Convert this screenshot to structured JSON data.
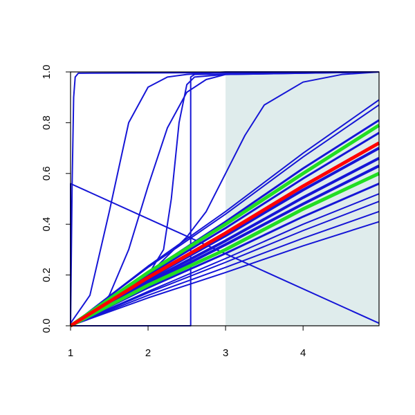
{
  "chart_data": {
    "type": "line",
    "xlim": [
      1,
      4.98
    ],
    "ylim": [
      0,
      1
    ],
    "xticks": [
      1,
      2,
      3,
      4
    ],
    "yticks": [
      {
        "value": 0,
        "label": "0.0"
      },
      0.2,
      0.4,
      0.6,
      0.8,
      {
        "value": 1,
        "label": "1.0"
      }
    ],
    "highlight_x": [
      3,
      4.98
    ],
    "highlight_color": "#dfecec",
    "series": [
      {
        "color": "#1515d6",
        "width": 2,
        "x": [
          1,
          1.02,
          1.04,
          1.06,
          1.1,
          4.98
        ],
        "values": [
          0,
          0.55,
          0.9,
          0.98,
          0.995,
          1
        ]
      },
      {
        "color": "#1515d6",
        "width": 2,
        "x": [
          1,
          1,
          4.98
        ],
        "values": [
          0,
          0.56,
          0.01
        ]
      },
      {
        "color": "#1515d6",
        "width": 2,
        "x": [
          1,
          1.25,
          1.5,
          1.75,
          2,
          2.25,
          2.5,
          3,
          4.98
        ],
        "values": [
          0.01,
          0.12,
          0.45,
          0.8,
          0.94,
          0.98,
          0.99,
          1,
          1
        ]
      },
      {
        "color": "#1515d6",
        "width": 2,
        "x": [
          1,
          1.25,
          1.5,
          1.75,
          2,
          2.25,
          2.5,
          2.75,
          3,
          4.98
        ],
        "values": [
          0,
          0.03,
          0.12,
          0.3,
          0.55,
          0.78,
          0.92,
          0.97,
          0.99,
          1
        ]
      },
      {
        "color": "#1515d6",
        "width": 2,
        "x": [
          1,
          2,
          2.2,
          2.3,
          2.4,
          2.5,
          2.6,
          3,
          4.98
        ],
        "values": [
          0,
          0.2,
          0.3,
          0.5,
          0.8,
          0.95,
          0.98,
          0.99,
          1
        ]
      },
      {
        "color": "#1515d6",
        "width": 2,
        "x": [
          1,
          2.55,
          2.55,
          2.6,
          4.98
        ],
        "values": [
          0,
          0,
          0.98,
          0.99,
          1
        ]
      },
      {
        "color": "#1515d6",
        "width": 2,
        "x": [
          1,
          2,
          2.5,
          2.75,
          3,
          3.25,
          3.5,
          4,
          4.5,
          4.98
        ],
        "values": [
          0,
          0.2,
          0.35,
          0.45,
          0.6,
          0.75,
          0.87,
          0.96,
          0.99,
          1
        ]
      },
      {
        "color": "#1515d6",
        "width": 2,
        "x": [
          1,
          2,
          3,
          4,
          4.98
        ],
        "values": [
          0,
          0.235,
          0.45,
          0.68,
          0.89
        ]
      },
      {
        "color": "#1515d6",
        "width": 2,
        "x": [
          1,
          2,
          3,
          4,
          4.98
        ],
        "values": [
          0,
          0.23,
          0.44,
          0.665,
          0.87
        ]
      },
      {
        "color": "#1515d6",
        "width": 3,
        "x": [
          1,
          2,
          3,
          4,
          4.98
        ],
        "values": [
          0,
          0.21,
          0.41,
          0.62,
          0.81
        ]
      },
      {
        "color": "#1515d6",
        "width": 3,
        "x": [
          1,
          2,
          3,
          4,
          4.98
        ],
        "values": [
          0,
          0.2,
          0.385,
          0.58,
          0.76
        ]
      },
      {
        "color": "#1515d6",
        "width": 4,
        "x": [
          1,
          2,
          3,
          4,
          4.98
        ],
        "values": [
          0,
          0.185,
          0.355,
          0.535,
          0.7
        ]
      },
      {
        "color": "#1515d6",
        "width": 4,
        "x": [
          1,
          2,
          3,
          4,
          4.98
        ],
        "values": [
          0,
          0.175,
          0.335,
          0.505,
          0.66
        ]
      },
      {
        "color": "#1515d6",
        "width": 4,
        "x": [
          1,
          2,
          3,
          4,
          4.98
        ],
        "values": [
          0,
          0.165,
          0.32,
          0.48,
          0.63
        ]
      },
      {
        "color": "#1515d6",
        "width": 3,
        "x": [
          1,
          2,
          3,
          4,
          4.98
        ],
        "values": [
          0,
          0.15,
          0.285,
          0.43,
          0.56
        ]
      },
      {
        "color": "#1515d6",
        "width": 2,
        "x": [
          1,
          2,
          3,
          4,
          4.98
        ],
        "values": [
          0,
          0.135,
          0.265,
          0.4,
          0.52
        ]
      },
      {
        "color": "#1515d6",
        "width": 2,
        "x": [
          1,
          2,
          3,
          4,
          4.98
        ],
        "values": [
          0,
          0.13,
          0.25,
          0.375,
          0.49
        ]
      },
      {
        "color": "#1515d6",
        "width": 2,
        "x": [
          1,
          2,
          3,
          4,
          4.98
        ],
        "values": [
          0,
          0.12,
          0.23,
          0.345,
          0.45
        ]
      },
      {
        "color": "#1515d6",
        "width": 2,
        "x": [
          1,
          2,
          3,
          4,
          4.98
        ],
        "values": [
          0,
          0.11,
          0.21,
          0.315,
          0.41
        ]
      },
      {
        "color": "#22dd22",
        "width": 5,
        "x": [
          1,
          2,
          3,
          4,
          4.98
        ],
        "values": [
          0,
          0.21,
          0.4,
          0.6,
          0.79
        ]
      },
      {
        "color": "#22dd22",
        "width": 5,
        "x": [
          1,
          2,
          3,
          4,
          4.98
        ],
        "values": [
          0,
          0.16,
          0.3,
          0.46,
          0.6
        ]
      },
      {
        "color": "#ff0000",
        "width": 5,
        "x": [
          1,
          2,
          3,
          4,
          4.98
        ],
        "values": [
          0,
          0.19,
          0.365,
          0.55,
          0.72
        ]
      }
    ]
  }
}
